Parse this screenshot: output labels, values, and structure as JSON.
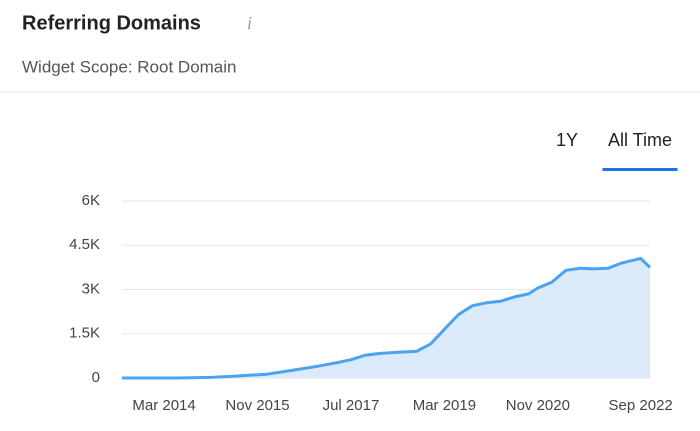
{
  "header": {
    "title": "Referring Domains",
    "info_icon": "i",
    "subtitle": "Widget Scope: Root Domain"
  },
  "tabs": {
    "items": [
      "1Y",
      "All Time"
    ],
    "active": 1
  },
  "chart_data": {
    "type": "area",
    "x": [
      "2013-06",
      "2014-06",
      "2015-01",
      "2015-06",
      "2016-01",
      "2016-06",
      "2016-12",
      "2017-04",
      "2017-07",
      "2017-10",
      "2018-01",
      "2018-05",
      "2018-09",
      "2018-12",
      "2019-03",
      "2019-06",
      "2019-09",
      "2019-12",
      "2020-03",
      "2020-06",
      "2020-09",
      "2020-11",
      "2021-02",
      "2021-05",
      "2021-08",
      "2021-11",
      "2022-02",
      "2022-05",
      "2022-09",
      "2022-11"
    ],
    "values": [
      0,
      0,
      20,
      60,
      130,
      250,
      400,
      520,
      620,
      770,
      830,
      870,
      900,
      1150,
      1650,
      2150,
      2450,
      2550,
      2600,
      2750,
      2850,
      3050,
      3250,
      3650,
      3720,
      3700,
      3720,
      3900,
      4050,
      3750
    ],
    "color": "#4aa3f0",
    "fill": "#dcebfa",
    "xlim": [
      "2013-06",
      "2022-11"
    ],
    "xticks": [
      {
        "value": "2014-03",
        "label": "Mar 2014"
      },
      {
        "value": "2015-11",
        "label": "Nov 2015"
      },
      {
        "value": "2017-07",
        "label": "Jul 2017"
      },
      {
        "value": "2019-03",
        "label": "Mar 2019"
      },
      {
        "value": "2020-11",
        "label": "Nov 2020"
      },
      {
        "value": "2022-09",
        "label": "Sep 2022"
      }
    ],
    "ylim": [
      0,
      6000
    ],
    "yticks": [
      0,
      {
        "value": 1500,
        "label": "1.5K"
      },
      {
        "value": 3000,
        "label": "3K"
      },
      {
        "value": 4500,
        "label": "4.5K"
      },
      {
        "value": 6000,
        "label": "6K"
      }
    ],
    "grid": true
  }
}
